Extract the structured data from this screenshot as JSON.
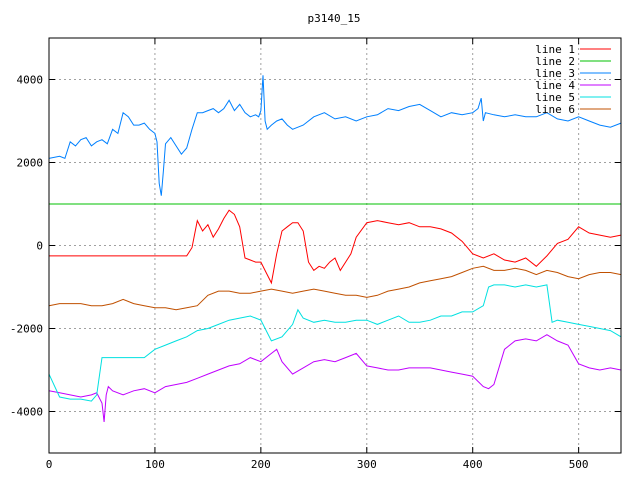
{
  "chart_data": {
    "type": "line",
    "title": "p3140_15",
    "xlabel": "",
    "ylabel": "",
    "xlim": [
      0,
      540
    ],
    "ylim": [
      -5000,
      5000
    ],
    "xticks": [
      0,
      100,
      200,
      300,
      400,
      500
    ],
    "yticks": [
      -4000,
      -2000,
      0,
      2000,
      4000
    ],
    "grid": true,
    "legend_position": "top-right",
    "series": [
      {
        "name": "line 1",
        "color": "#ff0000",
        "x": [
          0,
          50,
          100,
          130,
          135,
          140,
          145,
          150,
          155,
          160,
          165,
          170,
          175,
          180,
          185,
          190,
          195,
          200,
          205,
          210,
          215,
          220,
          225,
          230,
          235,
          240,
          245,
          250,
          255,
          260,
          265,
          270,
          275,
          280,
          285,
          290,
          300,
          310,
          320,
          330,
          340,
          350,
          360,
          370,
          380,
          390,
          400,
          410,
          420,
          430,
          440,
          450,
          460,
          470,
          480,
          490,
          500,
          510,
          520,
          530,
          540
        ],
        "y": [
          -250,
          -250,
          -250,
          -250,
          -50,
          600,
          350,
          500,
          200,
          400,
          650,
          850,
          750,
          450,
          -300,
          -350,
          -400,
          -400,
          -650,
          -900,
          -200,
          350,
          450,
          550,
          550,
          350,
          -400,
          -600,
          -500,
          -550,
          -400,
          -300,
          -600,
          -400,
          -200,
          200,
          550,
          600,
          550,
          500,
          550,
          450,
          450,
          400,
          300,
          100,
          -200,
          -300,
          -200,
          -350,
          -400,
          -300,
          -500,
          -250,
          50,
          150,
          450,
          300,
          250,
          200,
          250
        ]
      },
      {
        "name": "line 2",
        "color": "#00c000",
        "x": [
          0,
          540
        ],
        "y": [
          1000,
          1000
        ]
      },
      {
        "name": "line 3",
        "color": "#0080ff",
        "x": [
          0,
          10,
          15,
          20,
          25,
          30,
          35,
          40,
          45,
          50,
          55,
          60,
          65,
          70,
          75,
          80,
          85,
          90,
          95,
          100,
          102,
          104,
          106,
          108,
          110,
          115,
          120,
          125,
          130,
          135,
          140,
          145,
          150,
          155,
          160,
          165,
          170,
          175,
          180,
          185,
          190,
          195,
          198,
          200,
          202,
          204,
          206,
          210,
          215,
          220,
          225,
          230,
          235,
          240,
          250,
          260,
          270,
          280,
          290,
          300,
          310,
          320,
          330,
          340,
          350,
          360,
          370,
          380,
          390,
          400,
          405,
          408,
          410,
          412,
          420,
          430,
          440,
          450,
          460,
          470,
          480,
          490,
          500,
          510,
          520,
          530,
          540
        ],
        "y": [
          2100,
          2150,
          2100,
          2500,
          2400,
          2550,
          2600,
          2400,
          2500,
          2550,
          2450,
          2800,
          2700,
          3200,
          3100,
          2900,
          2900,
          2950,
          2800,
          2700,
          2500,
          1500,
          1200,
          1800,
          2450,
          2600,
          2400,
          2200,
          2350,
          2800,
          3200,
          3200,
          3250,
          3300,
          3200,
          3300,
          3500,
          3250,
          3400,
          3200,
          3100,
          3150,
          3100,
          3250,
          4100,
          3000,
          2800,
          2900,
          3000,
          3050,
          2900,
          2800,
          2850,
          2900,
          3100,
          3200,
          3050,
          3100,
          3000,
          3100,
          3150,
          3300,
          3250,
          3350,
          3400,
          3250,
          3100,
          3200,
          3150,
          3200,
          3300,
          3550,
          3000,
          3200,
          3150,
          3100,
          3150,
          3100,
          3100,
          3200,
          3050,
          3000,
          3100,
          3000,
          2900,
          2850,
          2950
        ]
      },
      {
        "name": "line 4",
        "color": "#c000ff",
        "x": [
          0,
          10,
          20,
          30,
          40,
          45,
          50,
          52,
          54,
          56,
          60,
          70,
          80,
          90,
          100,
          110,
          120,
          130,
          140,
          150,
          160,
          170,
          180,
          190,
          200,
          210,
          215,
          220,
          230,
          240,
          250,
          260,
          270,
          280,
          290,
          300,
          310,
          320,
          330,
          340,
          350,
          360,
          370,
          380,
          390,
          400,
          410,
          415,
          420,
          430,
          440,
          450,
          460,
          470,
          480,
          490,
          500,
          510,
          520,
          530,
          540
        ],
        "y": [
          -3500,
          -3550,
          -3600,
          -3650,
          -3600,
          -3550,
          -3800,
          -4250,
          -3600,
          -3400,
          -3500,
          -3600,
          -3500,
          -3450,
          -3550,
          -3400,
          -3350,
          -3300,
          -3200,
          -3100,
          -3000,
          -2900,
          -2850,
          -2700,
          -2800,
          -2600,
          -2500,
          -2800,
          -3100,
          -2950,
          -2800,
          -2750,
          -2800,
          -2700,
          -2600,
          -2900,
          -2950,
          -3000,
          -3000,
          -2950,
          -2950,
          -2950,
          -3000,
          -3050,
          -3100,
          -3150,
          -3400,
          -3450,
          -3350,
          -2500,
          -2300,
          -2250,
          -2300,
          -2150,
          -2300,
          -2400,
          -2850,
          -2950,
          -3000,
          -2950,
          -3000
        ]
      },
      {
        "name": "line 5",
        "color": "#00e0e0",
        "x": [
          0,
          10,
          20,
          30,
          40,
          45,
          50,
          60,
          70,
          80,
          90,
          100,
          110,
          120,
          130,
          140,
          150,
          160,
          170,
          180,
          190,
          200,
          210,
          220,
          230,
          235,
          240,
          250,
          260,
          270,
          280,
          290,
          300,
          310,
          320,
          330,
          340,
          350,
          360,
          370,
          380,
          390,
          400,
          410,
          415,
          420,
          430,
          440,
          450,
          460,
          470,
          475,
          480,
          490,
          500,
          510,
          520,
          530,
          540
        ],
        "y": [
          -3100,
          -3650,
          -3700,
          -3700,
          -3750,
          -3600,
          -2700,
          -2700,
          -2700,
          -2700,
          -2700,
          -2500,
          -2400,
          -2300,
          -2200,
          -2050,
          -2000,
          -1900,
          -1800,
          -1750,
          -1700,
          -1800,
          -2300,
          -2200,
          -1900,
          -1550,
          -1750,
          -1850,
          -1800,
          -1850,
          -1850,
          -1800,
          -1800,
          -1900,
          -1800,
          -1700,
          -1850,
          -1850,
          -1800,
          -1700,
          -1700,
          -1600,
          -1600,
          -1450,
          -1000,
          -950,
          -950,
          -1000,
          -950,
          -1000,
          -950,
          -1850,
          -1800,
          -1850,
          -1900,
          -1950,
          -2000,
          -2050,
          -2200
        ]
      },
      {
        "name": "line 6",
        "color": "#c05000",
        "x": [
          0,
          10,
          20,
          30,
          40,
          50,
          60,
          70,
          80,
          90,
          100,
          110,
          120,
          130,
          140,
          150,
          160,
          170,
          180,
          190,
          200,
          210,
          220,
          230,
          240,
          250,
          260,
          270,
          280,
          290,
          300,
          310,
          320,
          330,
          340,
          350,
          360,
          370,
          380,
          390,
          400,
          410,
          420,
          430,
          440,
          450,
          460,
          470,
          480,
          490,
          500,
          510,
          520,
          530,
          540
        ],
        "y": [
          -1450,
          -1400,
          -1400,
          -1400,
          -1450,
          -1450,
          -1400,
          -1300,
          -1400,
          -1450,
          -1500,
          -1500,
          -1550,
          -1500,
          -1450,
          -1200,
          -1100,
          -1100,
          -1150,
          -1150,
          -1100,
          -1050,
          -1100,
          -1150,
          -1100,
          -1050,
          -1100,
          -1150,
          -1200,
          -1200,
          -1250,
          -1200,
          -1100,
          -1050,
          -1000,
          -900,
          -850,
          -800,
          -750,
          -650,
          -550,
          -500,
          -600,
          -600,
          -550,
          -600,
          -700,
          -600,
          -650,
          -750,
          -800,
          -700,
          -650,
          -650,
          -700
        ]
      }
    ]
  }
}
